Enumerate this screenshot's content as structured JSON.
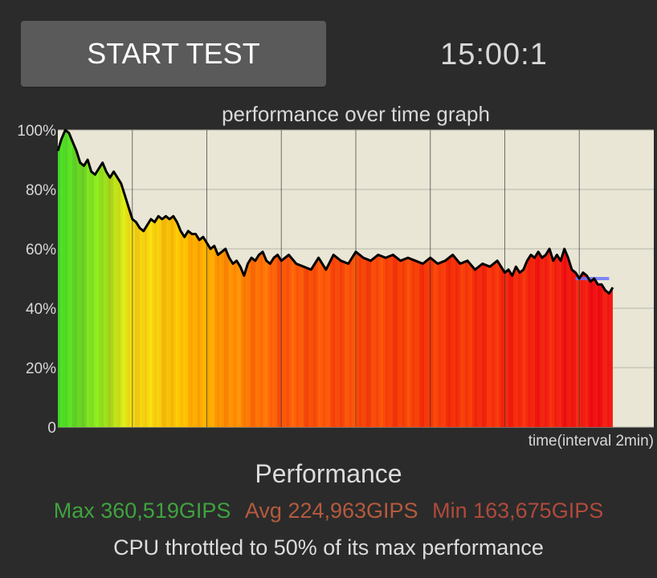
{
  "controls": {
    "start_label": "START TEST",
    "timer": "15:00:1"
  },
  "graph": {
    "title": "performance over time graph",
    "xlabel": "time(interval 2min)"
  },
  "summary": {
    "title": "Performance",
    "max_label": "Max 360,519GIPS",
    "avg_label": "Avg 224,963GIPS",
    "min_label": "Min 163,675GIPS",
    "throttle_text": "CPU throttled to 50% of its max performance"
  },
  "colors": {
    "max": "#3fa33f",
    "avg": "#b55a3d",
    "min": "#b04a3c",
    "plot_background": "#e9e6d6",
    "reference_line": "#6b73ff"
  },
  "chart_data": {
    "type": "area",
    "title": "performance over time graph",
    "xlabel": "time(interval 2min)",
    "ylabel": "",
    "ylim": [
      0,
      100
    ],
    "xlim": [
      0,
      16
    ],
    "y_ticks": [
      "0",
      "20%",
      "40%",
      "60%",
      "80%",
      "100%"
    ],
    "x_interval_minutes": 2,
    "vertical_gridlines_at_minutes": [
      2,
      4,
      6,
      8,
      10,
      12,
      14
    ],
    "grid": true,
    "reference_line": {
      "y": 50,
      "x_start": 13.9,
      "x_end": 14.8,
      "color": "#6b73ff"
    },
    "series": [
      {
        "x": [
          0,
          0.1,
          0.2,
          0.3,
          0.4,
          0.5,
          0.6,
          0.7,
          0.8,
          0.9,
          1.0,
          1.1,
          1.2,
          1.3,
          1.4,
          1.5,
          1.6,
          1.7,
          1.8,
          1.9,
          2.0,
          2.1,
          2.2,
          2.3,
          2.4,
          2.5,
          2.6,
          2.7,
          2.8,
          2.9,
          3.0,
          3.1,
          3.2,
          3.3,
          3.4,
          3.5,
          3.6,
          3.7,
          3.8,
          3.9,
          4.0,
          4.1,
          4.2,
          4.3,
          4.4,
          4.5,
          4.6,
          4.7,
          4.8,
          4.9,
          5.0,
          5.1,
          5.2,
          5.3,
          5.4,
          5.5,
          5.6,
          5.7,
          5.8,
          5.9,
          6.0,
          6.2,
          6.4,
          6.6,
          6.8,
          7.0,
          7.2,
          7.4,
          7.6,
          7.8,
          8.0,
          8.2,
          8.4,
          8.6,
          8.8,
          9.0,
          9.2,
          9.4,
          9.6,
          9.8,
          10.0,
          10.2,
          10.4,
          10.6,
          10.8,
          11.0,
          11.2,
          11.4,
          11.6,
          11.8,
          12.0,
          12.1,
          12.2,
          12.3,
          12.4,
          12.5,
          12.6,
          12.7,
          12.8,
          12.9,
          13.0,
          13.1,
          13.2,
          13.3,
          13.4,
          13.5,
          13.6,
          13.7,
          13.8,
          13.9,
          14.0,
          14.1,
          14.2,
          14.3,
          14.4,
          14.5,
          14.6,
          14.7,
          14.8,
          14.9
        ],
        "values": [
          93,
          97,
          100,
          99,
          96,
          93,
          89,
          88,
          90,
          86,
          85,
          87,
          89,
          86,
          84,
          86,
          84,
          82,
          78,
          74,
          70,
          69,
          67,
          66,
          68,
          70,
          69,
          71,
          70,
          71,
          70,
          71,
          69,
          66,
          64,
          66,
          65,
          65,
          63,
          64,
          62,
          60,
          61,
          58,
          59,
          60,
          57,
          55,
          56,
          54,
          51,
          55,
          57,
          56,
          58,
          59,
          56,
          55,
          57,
          58,
          56,
          58,
          55,
          54,
          53,
          57,
          53,
          58,
          56,
          55,
          59,
          57,
          56,
          58,
          57,
          58,
          56,
          57,
          56,
          55,
          57,
          55,
          56,
          58,
          55,
          56,
          53,
          55,
          54,
          56,
          52,
          53,
          51,
          54,
          52,
          53,
          56,
          58,
          57,
          59,
          57,
          58,
          60,
          56,
          58,
          56,
          60,
          57,
          53,
          52,
          50,
          52,
          51,
          49,
          50,
          48,
          48,
          46,
          45,
          47
        ]
      }
    ]
  }
}
